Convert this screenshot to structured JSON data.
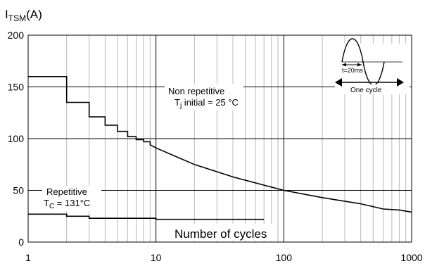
{
  "chart_data": {
    "type": "line",
    "x_scale": "log",
    "xlim": [
      1,
      1000
    ],
    "ylim": [
      0,
      200
    ],
    "ylabel_main": "I",
    "ylabel_sub": "TSM",
    "ylabel_unit": "(A)",
    "xlabel": "Number of cycles",
    "x_ticks": [
      1,
      10,
      100,
      1000
    ],
    "x_tick_labels": [
      "1",
      "10",
      "100",
      "1000"
    ],
    "y_ticks": [
      0,
      50,
      100,
      150,
      200
    ],
    "y_tick_labels": [
      "0",
      "50",
      "100",
      "150",
      "200"
    ],
    "grid": true,
    "series": [
      {
        "name": "Non repetitive",
        "shape": "step-then-line",
        "x": [
          1,
          2,
          2,
          3,
          3,
          4,
          4,
          5,
          5,
          6,
          6,
          7,
          7,
          8,
          8,
          9,
          9,
          10,
          20,
          40,
          70,
          100,
          200,
          400,
          600,
          800,
          1000
        ],
        "y": [
          160,
          160,
          135,
          135,
          121,
          121,
          113,
          113,
          107,
          107,
          102,
          102,
          99,
          99,
          97,
          97,
          94,
          91,
          75,
          63,
          55,
          50,
          43,
          37,
          32,
          31,
          29
        ]
      },
      {
        "name": "Repetitive",
        "shape": "step",
        "x": [
          1,
          2,
          2,
          3,
          3,
          10,
          10,
          70
        ],
        "y": [
          27,
          27,
          25,
          25,
          23,
          23,
          22,
          22
        ]
      }
    ],
    "annotations": {
      "non_repetitive_line1": "Non repetitive",
      "non_repetitive_line2_a": "T",
      "non_repetitive_line2_sub": "j",
      "non_repetitive_line2_b": " initial = 25 °C",
      "repetitive_line1": "Repetitive",
      "repetitive_line2_a": "T",
      "repetitive_line2_sub": "C",
      "repetitive_line2_b": " = 131°C",
      "inset_period": "t=20ms",
      "inset_cycle": "One cycle"
    }
  }
}
